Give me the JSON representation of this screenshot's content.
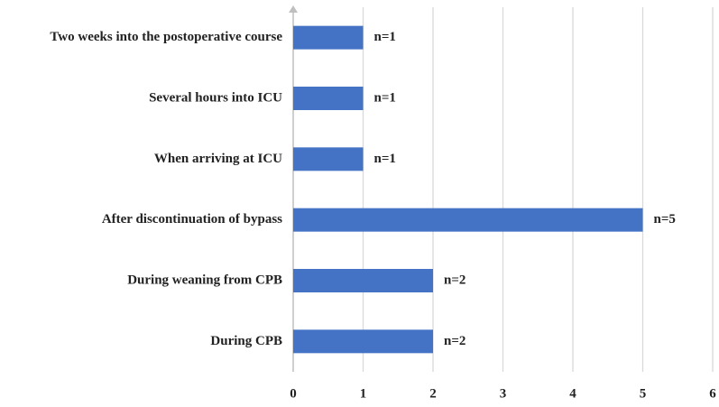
{
  "chart_data": {
    "type": "bar",
    "orientation": "horizontal",
    "title": "",
    "xlabel": "",
    "ylabel": "",
    "categories": [
      "During CPB",
      "During weaning from CPB",
      "After discontinuation of bypass",
      "When arriving at ICU",
      "Several hours into ICU",
      "Two weeks into the postoperative course"
    ],
    "values": [
      2,
      2,
      5,
      1,
      1,
      1
    ],
    "data_labels": [
      "n=2",
      "n=2",
      "n=5",
      "n=1",
      "n=1",
      "n=1"
    ],
    "xlim": [
      0,
      6
    ],
    "xticks": [
      "0",
      "1",
      "2",
      "3",
      "4",
      "5",
      "6"
    ],
    "grid": "vertical",
    "legend": "none",
    "colors": {
      "bar": "#4472C4",
      "grid": "#D9D9D9",
      "axis": "#BFBFBF",
      "text": "#222222"
    }
  }
}
